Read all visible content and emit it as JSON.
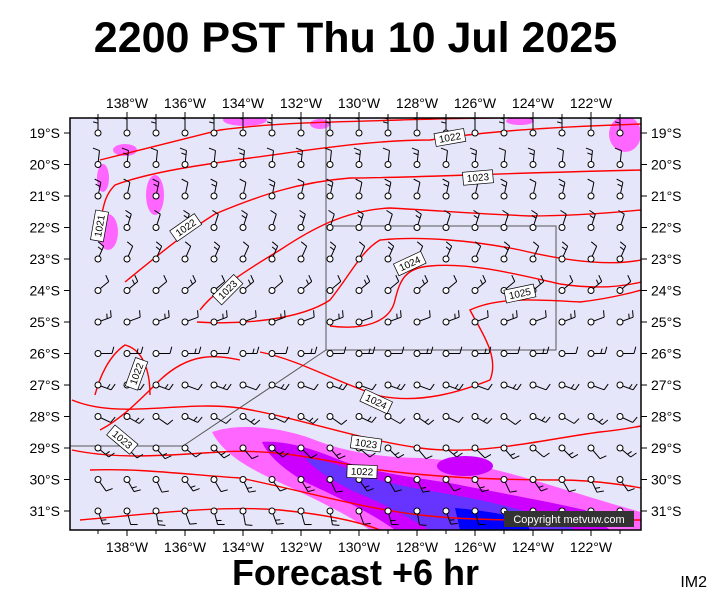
{
  "title": "2200 PST Thu 10 Jul 2025",
  "subtitle": "Forecast +6 hr",
  "image_code": "IM2",
  "copyright": "Copyright metvuw.com",
  "map": {
    "lon_labels": [
      "138°W",
      "136°W",
      "134°W",
      "132°W",
      "130°W",
      "128°W",
      "126°W",
      "124°W",
      "122°W"
    ],
    "lat_labels": [
      "19°S",
      "20°S",
      "21°S",
      "22°S",
      "23°S",
      "24°S",
      "25°S",
      "26°S",
      "27°S",
      "28°S",
      "29°S",
      "30°S",
      "31°S"
    ],
    "isobar_labels": [
      "1022",
      "1023",
      "1021",
      "1022",
      "1024",
      "1023",
      "1022",
      "1025",
      "1024",
      "1023",
      "1023"
    ],
    "colors": {
      "background": "#e6e6fa",
      "isobar": "#ff0000",
      "rain_light": "#ff66ff",
      "rain_medium": "#cc00ff",
      "rain_heavy": "#6633ff",
      "rain_extreme": "#0000ff"
    }
  }
}
